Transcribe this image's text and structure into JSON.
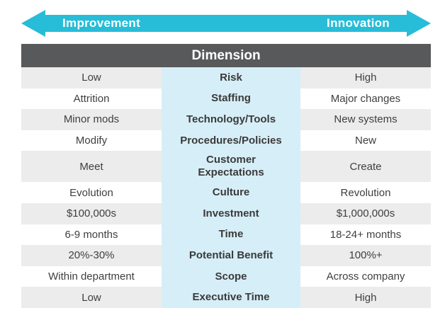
{
  "arrow": {
    "left_label": "Improvement",
    "right_label": "Innovation",
    "color": "#27bcd8"
  },
  "table": {
    "header": "Dimension",
    "rows": [
      {
        "left": "Low",
        "dimension": "Risk",
        "right": "High"
      },
      {
        "left": "Attrition",
        "dimension": "Staffing",
        "right": "Major changes"
      },
      {
        "left": "Minor mods",
        "dimension": "Technology/Tools",
        "right": "New systems"
      },
      {
        "left": "Modify",
        "dimension": "Procedures/Policies",
        "right": "New"
      },
      {
        "left": "Meet",
        "dimension": "Customer Expectations",
        "right": "Create"
      },
      {
        "left": "Evolution",
        "dimension": "Culture",
        "right": "Revolution"
      },
      {
        "left": "$100,000s",
        "dimension": "Investment",
        "right": "$1,000,000s"
      },
      {
        "left": "6-9 months",
        "dimension": "Time",
        "right": "18-24+ months"
      },
      {
        "left": "20%-30%",
        "dimension": "Potential Benefit",
        "right": "100%+"
      },
      {
        "left": "Within department",
        "dimension": "Scope",
        "right": "Across company"
      },
      {
        "left": "Low",
        "dimension": "Executive Time",
        "right": "High"
      }
    ]
  }
}
